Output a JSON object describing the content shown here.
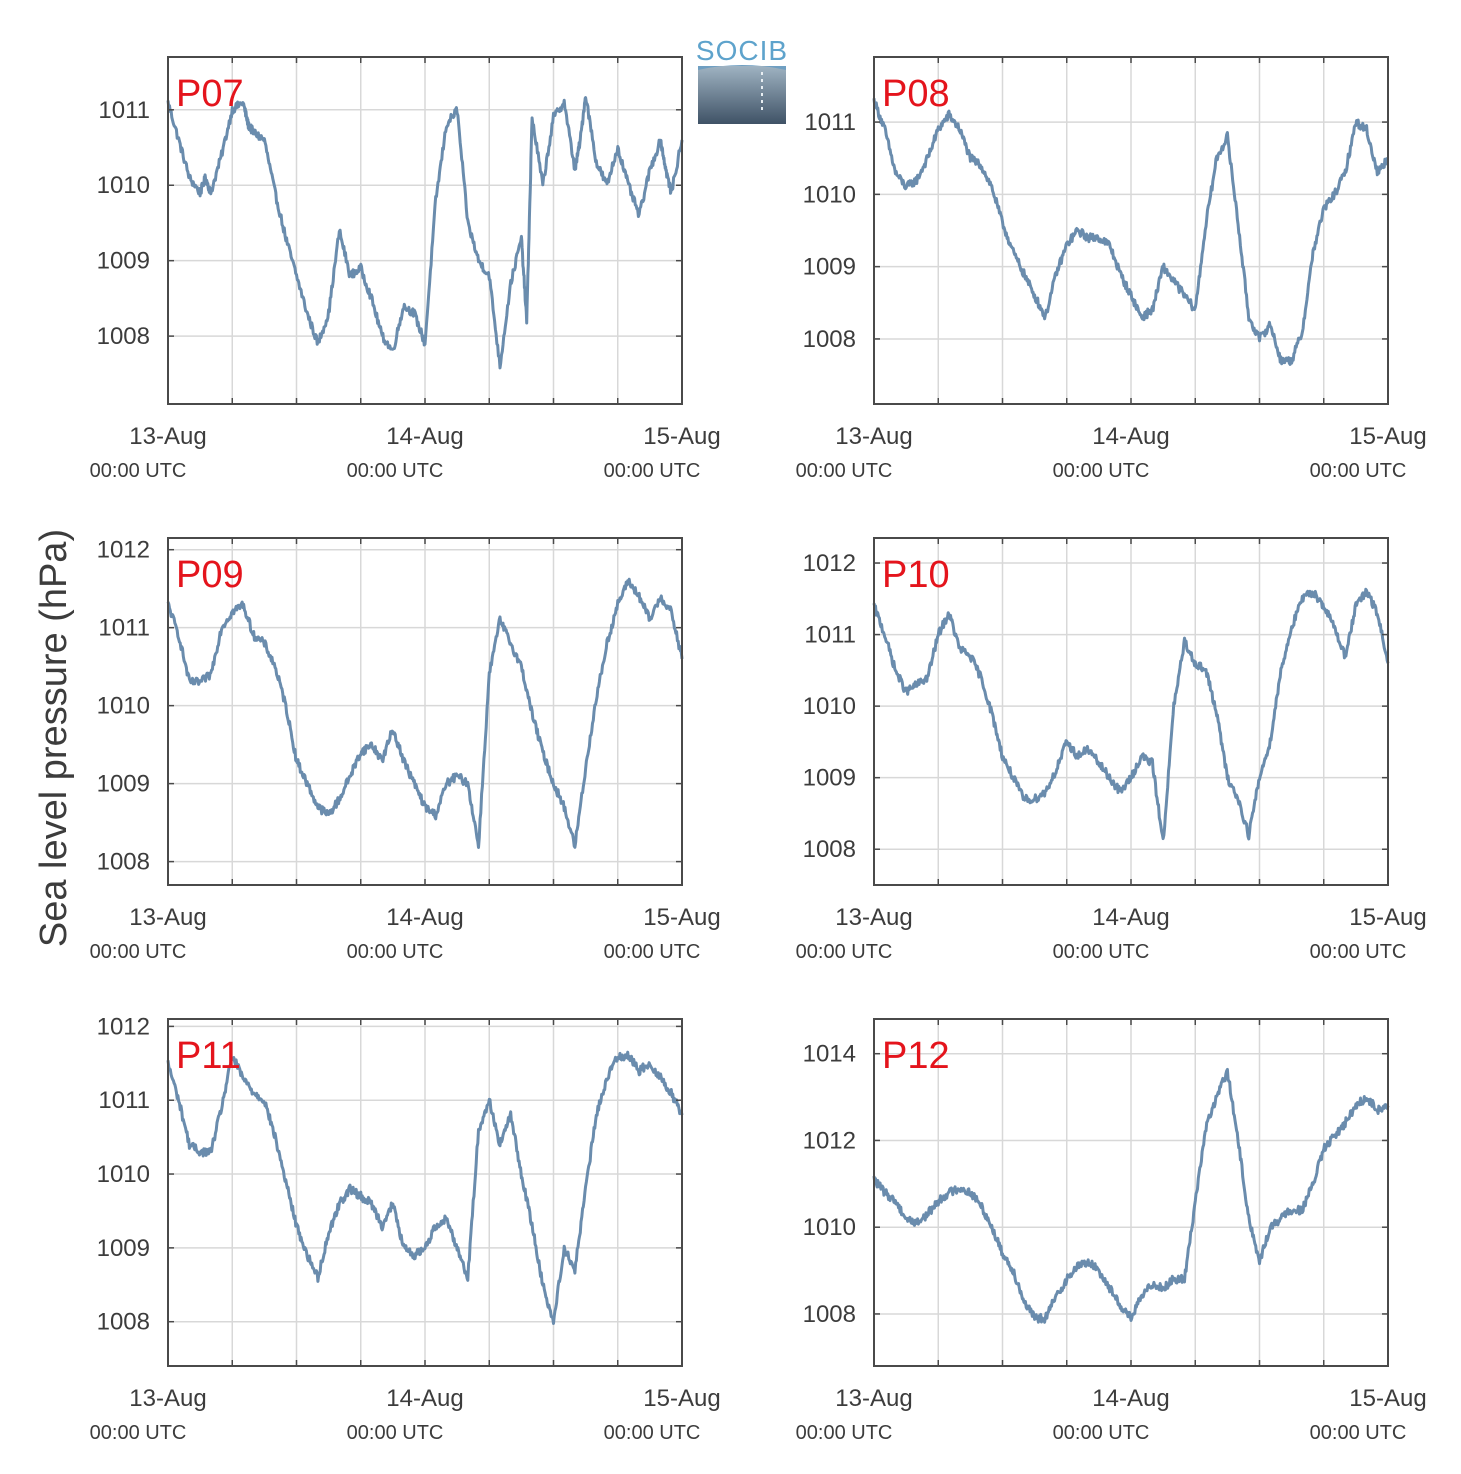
{
  "figure": {
    "ylabel": "Sea level pressure (hPa)",
    "logo_text": "SOCIB"
  },
  "style": {
    "line_color": "#6a8cad",
    "station_label_color": "#e4141c",
    "axis_color": "#4a4a4a",
    "grid_color": "#d8d8d8",
    "text_color": "#3c3c3c",
    "logo_text_color": "#5ea3cc",
    "logo_wave_color": "#6f9fc2",
    "logo_bottom_color": "#3f5266"
  },
  "chart_data": [
    {
      "type": "line",
      "title": "P07",
      "x_tick_labels": [
        [
          "13-Aug",
          "00:00 UTC"
        ],
        [
          "14-Aug",
          "00:00 UTC"
        ],
        [
          "15-Aug",
          "00:00 UTC"
        ]
      ],
      "x_range_hours": [
        0,
        48
      ],
      "ylim": [
        1007.1,
        1011.7
      ],
      "y_ticks": [
        1008,
        1009,
        1010,
        1011
      ],
      "series": [
        {
          "x": [
            0,
            1,
            2,
            3,
            3.5,
            4,
            5,
            6,
            7,
            7.5,
            8,
            9,
            10,
            11,
            12,
            13,
            14,
            15,
            16,
            17,
            18,
            19,
            20,
            21,
            22,
            23,
            24,
            25,
            26,
            27,
            28,
            29,
            30,
            31,
            32,
            33,
            33.5,
            34,
            35,
            36,
            37,
            38,
            38.5,
            39,
            40,
            41,
            42,
            43,
            44,
            45,
            46,
            46.5,
            47,
            48
          ],
          "y": [
            1011.1,
            1010.6,
            1010.1,
            1009.9,
            1010.1,
            1009.9,
            1010.4,
            1011.0,
            1011.1,
            1010.8,
            1010.7,
            1010.6,
            1009.9,
            1009.3,
            1008.8,
            1008.3,
            1007.9,
            1008.3,
            1009.4,
            1008.8,
            1008.9,
            1008.5,
            1008.0,
            1007.8,
            1008.4,
            1008.3,
            1007.9,
            1009.8,
            1010.8,
            1011.0,
            1009.5,
            1009.0,
            1008.8,
            1007.6,
            1008.7,
            1009.3,
            1008.2,
            1010.9,
            1010.0,
            1010.9,
            1011.1,
            1010.2,
            1010.6,
            1011.2,
            1010.3,
            1010.0,
            1010.5,
            1010.0,
            1009.6,
            1010.2,
            1010.6,
            1010.2,
            1009.9,
            1010.6
          ]
        }
      ]
    },
    {
      "type": "line",
      "title": "P08",
      "x_tick_labels": [
        [
          "13-Aug",
          "00:00 UTC"
        ],
        [
          "14-Aug",
          "00:00 UTC"
        ],
        [
          "15-Aug",
          "00:00 UTC"
        ]
      ],
      "x_range_hours": [
        0,
        48
      ],
      "ylim": [
        1007.1,
        1011.9
      ],
      "y_ticks": [
        1008,
        1009,
        1010,
        1011
      ],
      "series": [
        {
          "x": [
            0,
            1,
            2,
            3,
            4,
            5,
            6,
            7,
            8,
            9,
            10,
            11,
            12,
            13,
            14,
            15,
            16,
            17,
            18,
            19,
            20,
            21,
            22,
            23,
            24,
            25,
            26,
            27,
            28,
            29,
            30,
            31,
            32,
            33,
            34,
            35,
            36,
            37,
            38,
            39,
            40,
            41,
            42,
            43,
            44,
            45,
            46,
            47,
            48
          ],
          "y": [
            1011.3,
            1010.9,
            1010.3,
            1010.1,
            1010.2,
            1010.5,
            1010.9,
            1011.1,
            1010.9,
            1010.5,
            1010.4,
            1010.1,
            1009.6,
            1009.2,
            1008.9,
            1008.6,
            1008.3,
            1008.9,
            1009.3,
            1009.5,
            1009.4,
            1009.4,
            1009.3,
            1008.9,
            1008.6,
            1008.3,
            1008.4,
            1009.0,
            1008.8,
            1008.6,
            1008.4,
            1009.6,
            1010.5,
            1010.8,
            1009.6,
            1008.3,
            1008.0,
            1008.2,
            1007.7,
            1007.7,
            1008.1,
            1009.2,
            1009.8,
            1010.0,
            1010.3,
            1011.0,
            1010.9,
            1010.3,
            1010.5
          ]
        }
      ]
    },
    {
      "type": "line",
      "title": "P09",
      "x_tick_labels": [
        [
          "13-Aug",
          "00:00 UTC"
        ],
        [
          "14-Aug",
          "00:00 UTC"
        ],
        [
          "15-Aug",
          "00:00 UTC"
        ]
      ],
      "x_range_hours": [
        0,
        48
      ],
      "ylim": [
        1007.7,
        1012.15
      ],
      "y_ticks": [
        1008,
        1009,
        1010,
        1011,
        1012
      ],
      "series": [
        {
          "x": [
            0,
            1,
            2,
            3,
            4,
            5,
            6,
            7,
            8,
            9,
            10,
            11,
            12,
            13,
            14,
            15,
            16,
            17,
            18,
            19,
            20,
            21,
            22,
            23,
            24,
            25,
            26,
            27,
            28,
            29,
            30,
            31,
            32,
            33,
            34,
            35,
            36,
            37,
            38,
            39,
            40,
            41,
            42,
            43,
            44,
            45,
            46,
            47,
            48
          ],
          "y": [
            1011.3,
            1010.9,
            1010.3,
            1010.3,
            1010.4,
            1011.0,
            1011.2,
            1011.3,
            1010.9,
            1010.8,
            1010.5,
            1010.0,
            1009.3,
            1009.0,
            1008.7,
            1008.6,
            1008.8,
            1009.1,
            1009.4,
            1009.5,
            1009.3,
            1009.7,
            1009.3,
            1009.0,
            1008.7,
            1008.6,
            1009.0,
            1009.1,
            1009.0,
            1008.2,
            1010.4,
            1011.1,
            1010.8,
            1010.5,
            1009.9,
            1009.4,
            1009.0,
            1008.7,
            1008.2,
            1009.2,
            1010.1,
            1010.8,
            1011.3,
            1011.6,
            1011.4,
            1011.1,
            1011.4,
            1011.2,
            1010.6
          ]
        }
      ]
    },
    {
      "type": "line",
      "title": "P10",
      "x_tick_labels": [
        [
          "13-Aug",
          "00:00 UTC"
        ],
        [
          "14-Aug",
          "00:00 UTC"
        ],
        [
          "15-Aug",
          "00:00 UTC"
        ]
      ],
      "x_range_hours": [
        0,
        48
      ],
      "ylim": [
        1007.5,
        1012.35
      ],
      "y_ticks": [
        1008,
        1009,
        1010,
        1011,
        1012
      ],
      "series": [
        {
          "x": [
            0,
            1,
            2,
            3,
            4,
            5,
            6,
            7,
            8,
            9,
            10,
            11,
            12,
            13,
            14,
            15,
            16,
            17,
            18,
            19,
            20,
            21,
            22,
            23,
            24,
            25,
            26,
            27,
            28,
            29,
            30,
            31,
            32,
            33,
            34,
            35,
            36,
            37,
            38,
            39,
            40,
            41,
            42,
            43,
            44,
            45,
            46,
            47,
            48
          ],
          "y": [
            1011.4,
            1011.0,
            1010.5,
            1010.2,
            1010.3,
            1010.4,
            1011.0,
            1011.3,
            1010.8,
            1010.7,
            1010.4,
            1009.9,
            1009.3,
            1009.0,
            1008.7,
            1008.7,
            1008.8,
            1009.1,
            1009.5,
            1009.3,
            1009.4,
            1009.2,
            1009.0,
            1008.8,
            1009.0,
            1009.3,
            1009.2,
            1008.1,
            1010.0,
            1010.9,
            1010.6,
            1010.5,
            1009.9,
            1009.0,
            1008.7,
            1008.2,
            1009.0,
            1009.5,
            1010.5,
            1011.1,
            1011.5,
            1011.6,
            1011.4,
            1011.1,
            1010.7,
            1011.4,
            1011.6,
            1011.3,
            1010.6
          ]
        }
      ]
    },
    {
      "type": "line",
      "title": "P11",
      "x_tick_labels": [
        [
          "13-Aug",
          "00:00 UTC"
        ],
        [
          "14-Aug",
          "00:00 UTC"
        ],
        [
          "15-Aug",
          "00:00 UTC"
        ]
      ],
      "x_range_hours": [
        0,
        48
      ],
      "ylim": [
        1007.4,
        1012.1
      ],
      "y_ticks": [
        1008,
        1009,
        1010,
        1011,
        1012
      ],
      "series": [
        {
          "x": [
            0,
            1,
            2,
            3,
            4,
            5,
            6,
            7,
            8,
            9,
            10,
            11,
            12,
            13,
            14,
            15,
            16,
            17,
            18,
            19,
            20,
            21,
            22,
            23,
            24,
            25,
            26,
            27,
            28,
            29,
            30,
            31,
            32,
            33,
            34,
            35,
            36,
            37,
            38,
            39,
            40,
            41,
            42,
            43,
            44,
            45,
            46,
            47,
            48
          ],
          "y": [
            1011.5,
            1011.0,
            1010.4,
            1010.3,
            1010.3,
            1010.9,
            1011.6,
            1011.3,
            1011.1,
            1011.0,
            1010.5,
            1009.9,
            1009.3,
            1008.9,
            1008.6,
            1009.2,
            1009.6,
            1009.8,
            1009.7,
            1009.6,
            1009.3,
            1009.6,
            1009.0,
            1008.9,
            1009.0,
            1009.3,
            1009.4,
            1009.0,
            1008.6,
            1010.6,
            1011.0,
            1010.4,
            1010.8,
            1010.0,
            1009.3,
            1008.5,
            1008.0,
            1009.0,
            1008.7,
            1009.8,
            1010.8,
            1011.3,
            1011.6,
            1011.6,
            1011.4,
            1011.5,
            1011.3,
            1011.1,
            1010.8
          ]
        }
      ]
    },
    {
      "type": "line",
      "title": "P12",
      "x_tick_labels": [
        [
          "13-Aug",
          "00:00 UTC"
        ],
        [
          "14-Aug",
          "00:00 UTC"
        ],
        [
          "15-Aug",
          "00:00 UTC"
        ]
      ],
      "x_range_hours": [
        0,
        48
      ],
      "ylim": [
        1006.8,
        1014.8
      ],
      "y_ticks": [
        1008,
        1010,
        1012,
        1014
      ],
      "series": [
        {
          "x": [
            0,
            1,
            2,
            3,
            4,
            5,
            6,
            7,
            8,
            9,
            10,
            11,
            12,
            13,
            14,
            15,
            16,
            17,
            18,
            19,
            20,
            21,
            22,
            23,
            24,
            25,
            26,
            27,
            28,
            29,
            30,
            31,
            32,
            33,
            34,
            35,
            36,
            37,
            38,
            39,
            40,
            41,
            42,
            43,
            44,
            45,
            46,
            47,
            48
          ],
          "y": [
            1011.1,
            1010.8,
            1010.6,
            1010.2,
            1010.1,
            1010.3,
            1010.6,
            1010.8,
            1010.9,
            1010.8,
            1010.5,
            1010.0,
            1009.4,
            1009.0,
            1008.3,
            1007.9,
            1007.9,
            1008.4,
            1008.8,
            1009.1,
            1009.2,
            1009.0,
            1008.6,
            1008.2,
            1007.9,
            1008.4,
            1008.7,
            1008.6,
            1008.8,
            1008.8,
            1010.6,
            1012.3,
            1013.0,
            1013.6,
            1012.0,
            1010.2,
            1009.2,
            1010.0,
            1010.2,
            1010.4,
            1010.4,
            1011.0,
            1011.8,
            1012.1,
            1012.4,
            1012.8,
            1013.0,
            1012.7,
            1012.8
          ]
        }
      ]
    }
  ]
}
